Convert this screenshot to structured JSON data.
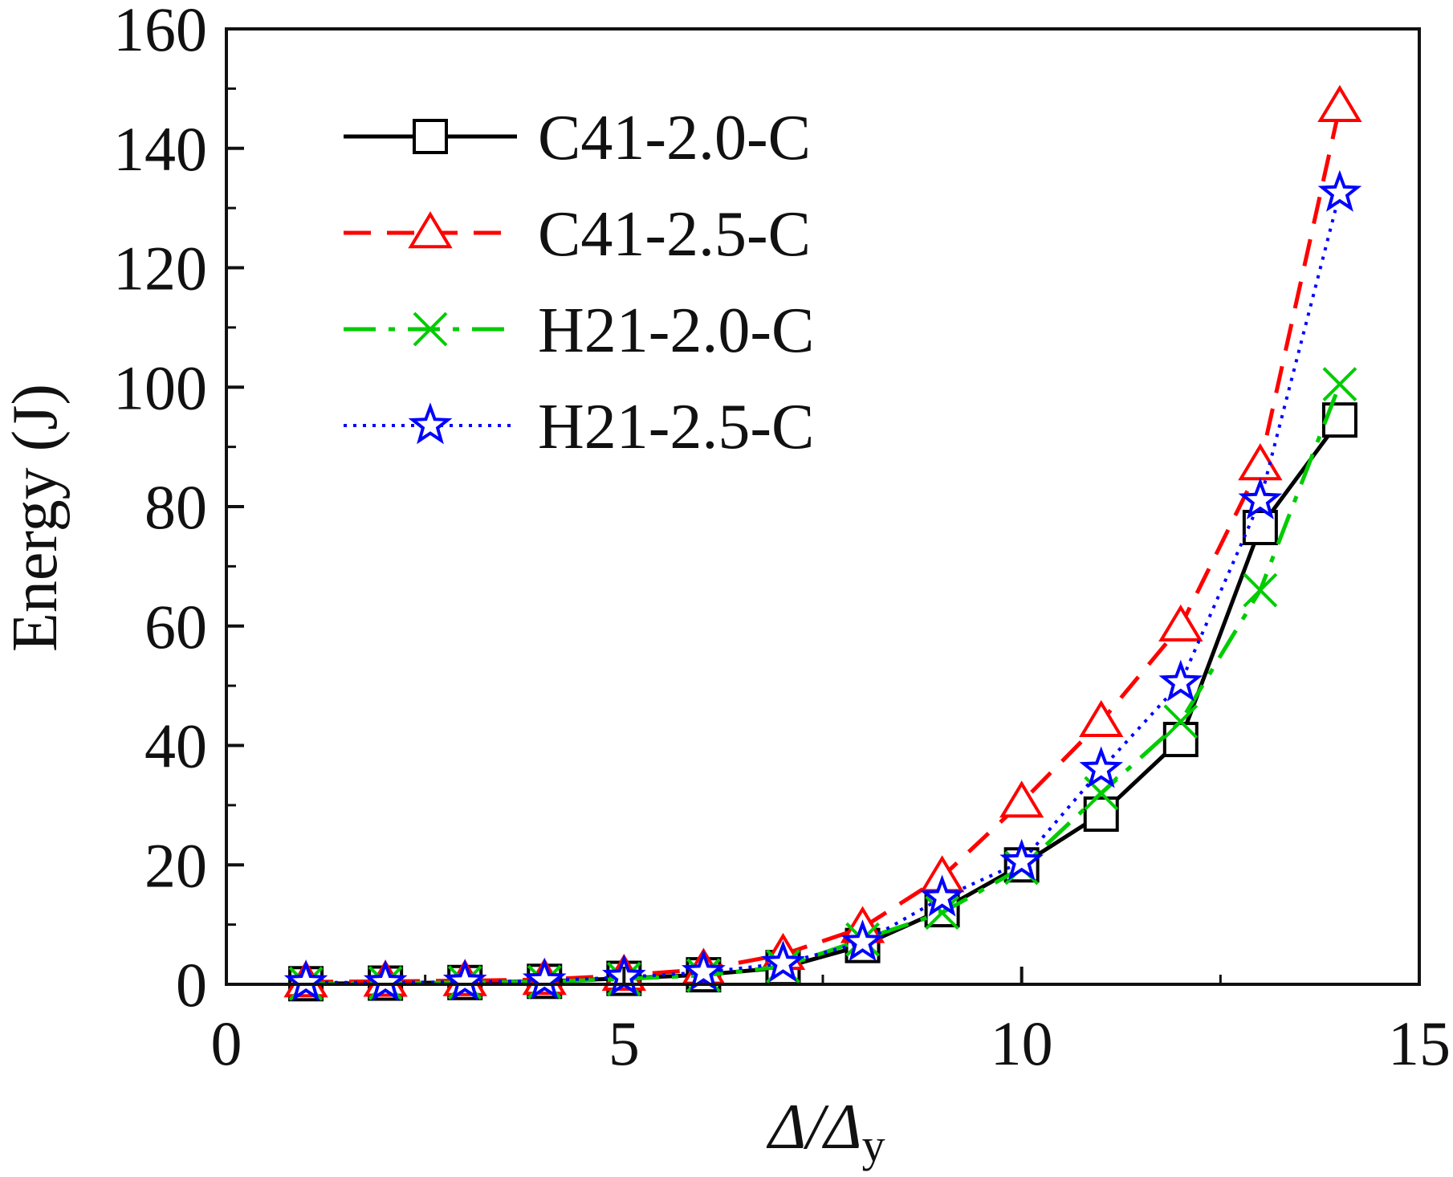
{
  "chart_data": {
    "type": "line",
    "xlabel": "Δ/Δy",
    "xlabel_main": "Δ/Δ",
    "xlabel_sub": "y",
    "ylabel": "Energy (J)",
    "xlim": [
      0,
      15
    ],
    "ylim": [
      0,
      160
    ],
    "x_ticks": [
      0,
      5,
      10,
      15
    ],
    "x_tick_labels": [
      "0",
      "5",
      "10",
      "15"
    ],
    "y_ticks": [
      0,
      20,
      40,
      60,
      80,
      100,
      120,
      140,
      160
    ],
    "y_tick_labels": [
      "0",
      "20",
      "40",
      "60",
      "80",
      "100",
      "120",
      "140",
      "160"
    ],
    "grid": false,
    "legend_position": "top-left",
    "x": [
      1,
      2,
      3,
      4,
      5,
      6,
      7,
      8,
      9,
      10,
      11,
      12,
      13,
      14
    ],
    "series": [
      {
        "name": "C41-2.0-C",
        "color": "#000000",
        "line_style": "solid",
        "marker": "square",
        "values": [
          0.1,
          0.2,
          0.3,
          0.5,
          1.0,
          1.6,
          2.8,
          6.5,
          12.5,
          20.0,
          28.5,
          41.0,
          76.5,
          94.5
        ]
      },
      {
        "name": "C41-2.5-C",
        "color": "#ff0000",
        "line_style": "dashed",
        "marker": "triangle",
        "values": [
          0.4,
          0.5,
          0.6,
          0.8,
          1.5,
          2.5,
          5.0,
          9.5,
          18.0,
          30.5,
          44.0,
          60.0,
          87.0,
          147.0
        ]
      },
      {
        "name": "H21-2.0-C",
        "color": "#00cc00",
        "line_style": "dashdot",
        "marker": "x",
        "values": [
          0.1,
          0.2,
          0.3,
          0.4,
          0.9,
          1.5,
          3.0,
          7.5,
          12.0,
          19.5,
          32.0,
          44.0,
          66.0,
          100.5
        ]
      },
      {
        "name": "H21-2.5-C",
        "color": "#0000ff",
        "line_style": "dotted",
        "marker": "star",
        "values": [
          0.3,
          0.3,
          0.4,
          0.6,
          1.2,
          2.0,
          3.5,
          7.0,
          14.5,
          20.5,
          36.0,
          50.5,
          81.0,
          132.5
        ]
      }
    ]
  }
}
